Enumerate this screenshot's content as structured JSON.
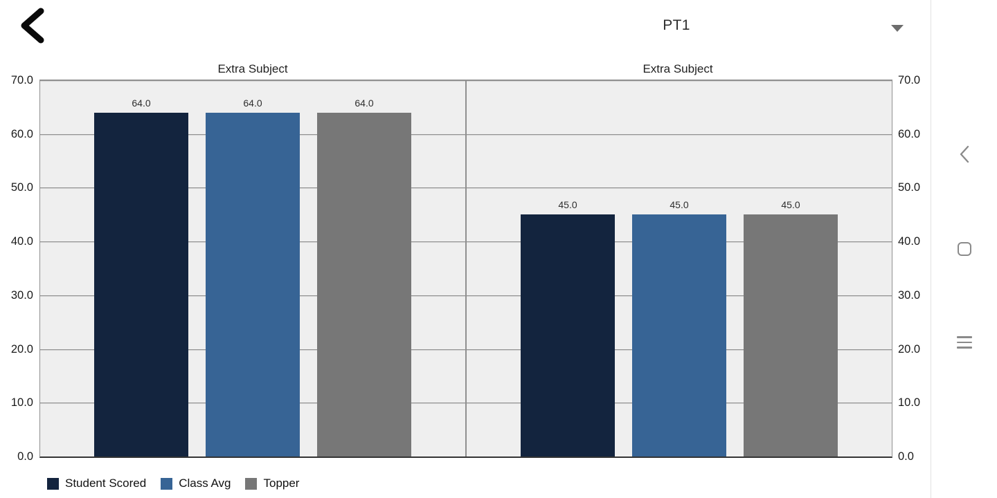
{
  "header": {
    "back_icon": "chevron-left",
    "term_selector": {
      "value": "PT1",
      "caret_icon": "triangle-down"
    }
  },
  "chart_data": [
    {
      "type": "bar",
      "title": "Extra Subject",
      "categories": [
        "Extra Subject"
      ],
      "series": [
        {
          "name": "Student Scored",
          "values": [
            64.0
          ],
          "color": "#13243e"
        },
        {
          "name": "Class Avg",
          "values": [
            64.0
          ],
          "color": "#376495"
        },
        {
          "name": "Topper",
          "values": [
            64.0
          ],
          "color": "#777777"
        }
      ],
      "value_labels": [
        "64.0",
        "64.0",
        "64.0"
      ],
      "ylim": [
        0,
        70
      ],
      "yticks": [
        "70.0",
        "60.0",
        "50.0",
        "40.0",
        "30.0",
        "20.0",
        "10.0",
        "0.0"
      ],
      "grid": true,
      "plot_background": "#efefef"
    },
    {
      "type": "bar",
      "title": "Extra Subject",
      "categories": [
        "Extra Subject"
      ],
      "series": [
        {
          "name": "Student Scored",
          "values": [
            45.0
          ],
          "color": "#13243e"
        },
        {
          "name": "Class Avg",
          "values": [
            45.0
          ],
          "color": "#376495"
        },
        {
          "name": "Topper",
          "values": [
            45.0
          ],
          "color": "#777777"
        }
      ],
      "value_labels": [
        "45.0",
        "45.0",
        "45.0"
      ],
      "ylim": [
        0,
        70
      ],
      "yticks": [
        "70.0",
        "60.0",
        "50.0",
        "40.0",
        "30.0",
        "20.0",
        "10.0",
        "0.0"
      ],
      "grid": true,
      "plot_background": "#efefef"
    }
  ],
  "legend": {
    "position": "bottom-left",
    "items": [
      {
        "label": "Student Scored",
        "color": "#13243e"
      },
      {
        "label": "Class Avg",
        "color": "#376495"
      },
      {
        "label": "Topper",
        "color": "#777777"
      }
    ]
  },
  "navbar": {
    "back_icon": "chevron-left",
    "home_icon": "rounded-square",
    "recents_icon": "three-lines"
  },
  "colors": {
    "bar_navy": "#13243e",
    "bar_blue": "#376495",
    "bar_gray": "#777777",
    "plot_background": "#efefef",
    "gridline": "#8f8f8f",
    "axis_line": "#333333",
    "nav_icon": "#8a8a8a"
  }
}
